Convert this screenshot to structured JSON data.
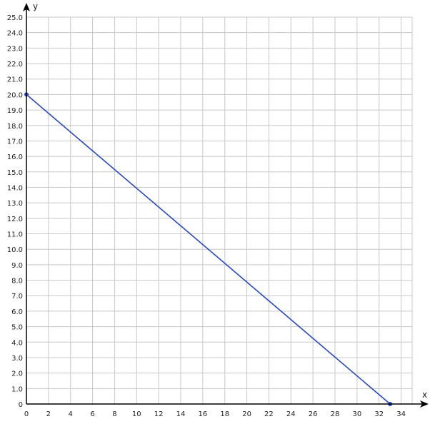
{
  "chart_data": {
    "type": "line",
    "title": "",
    "xlabel": "x",
    "ylabel": "y",
    "xlim": [
      0,
      35
    ],
    "ylim": [
      0,
      25
    ],
    "grid": true,
    "x_ticks": [
      "0",
      "2",
      "4",
      "6",
      "8",
      "10",
      "12",
      "14",
      "16",
      "18",
      "20",
      "22",
      "24",
      "26",
      "28",
      "30",
      "32",
      "34"
    ],
    "y_ticks": [
      "0",
      "1.0",
      "2.0",
      "3.0",
      "4.0",
      "5.0",
      "6.0",
      "7.0",
      "8.0",
      "9.0",
      "10.0",
      "11.0",
      "12.0",
      "13.0",
      "14.0",
      "15.0",
      "16.0",
      "17.0",
      "18.0",
      "19.0",
      "20.0",
      "21.0",
      "22.0",
      "23.0",
      "24.0",
      "25.0"
    ],
    "series": [
      {
        "points": [
          [
            0,
            20
          ],
          [
            33,
            0
          ]
        ],
        "color": "#2a48c8"
      }
    ]
  }
}
